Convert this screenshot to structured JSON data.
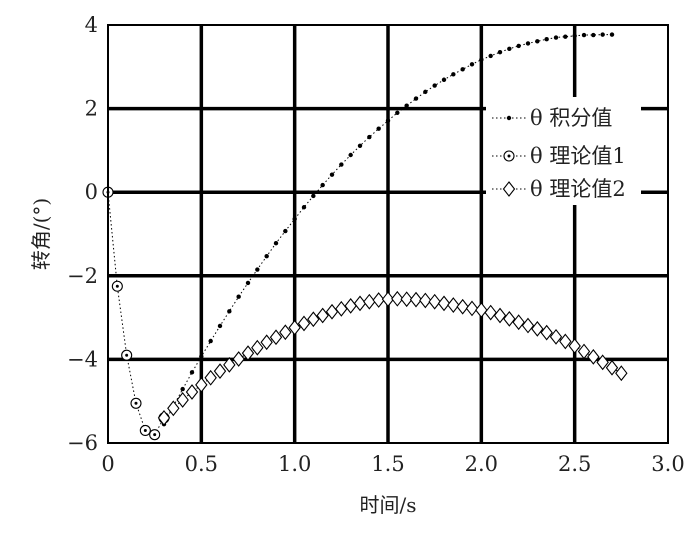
{
  "chart_data": {
    "type": "scatter",
    "title": "",
    "xlabel": "时间/s",
    "ylabel": "转角/(°)",
    "xlim": [
      0,
      3.0
    ],
    "ylim": [
      -6,
      4
    ],
    "grid": true,
    "legend_position": "top-right",
    "xticks": [
      "0",
      "0.5",
      "1.0",
      "1.5",
      "2.0",
      "2.5",
      "3.0"
    ],
    "yticks": [
      "4",
      "2",
      "0",
      "−2",
      "−4",
      "−6"
    ],
    "series": [
      {
        "name": "θ 积分值",
        "marker": "dot",
        "x": [
          0.3,
          0.35,
          0.4,
          0.45,
          0.5,
          0.55,
          0.6,
          0.65,
          0.7,
          0.75,
          0.8,
          0.85,
          0.9,
          0.95,
          1.0,
          1.05,
          1.1,
          1.15,
          1.2,
          1.25,
          1.3,
          1.35,
          1.4,
          1.45,
          1.5,
          1.55,
          1.6,
          1.65,
          1.7,
          1.75,
          1.8,
          1.85,
          1.9,
          1.95,
          2.0,
          2.05,
          2.1,
          2.15,
          2.2,
          2.25,
          2.3,
          2.35,
          2.4,
          2.45,
          2.5,
          2.55,
          2.6,
          2.65,
          2.7
        ],
        "y": [
          -5.55,
          -5.12,
          -4.71,
          -4.31,
          -3.93,
          -3.56,
          -3.2,
          -2.85,
          -2.5,
          -2.17,
          -1.85,
          -1.53,
          -1.22,
          -0.93,
          -0.64,
          -0.36,
          -0.09,
          0.17,
          0.42,
          0.66,
          0.89,
          1.11,
          1.32,
          1.52,
          1.71,
          1.9,
          2.07,
          2.24,
          2.4,
          2.55,
          2.69,
          2.82,
          2.94,
          3.06,
          3.17,
          3.26,
          3.35,
          3.43,
          3.5,
          3.56,
          3.61,
          3.66,
          3.7,
          3.72,
          3.74,
          3.76,
          3.76,
          3.77,
          3.77
        ]
      },
      {
        "name": "θ 理论值1",
        "marker": "circle",
        "x": [
          0.0,
          0.05,
          0.1,
          0.15,
          0.2,
          0.25,
          0.3
        ],
        "y": [
          0.0,
          -2.25,
          -3.9,
          -5.05,
          -5.7,
          -5.8,
          -5.4
        ]
      },
      {
        "name": "θ 理论值2",
        "marker": "diamond",
        "x": [
          0.3,
          0.35,
          0.4,
          0.45,
          0.5,
          0.55,
          0.6,
          0.65,
          0.7,
          0.75,
          0.8,
          0.85,
          0.9,
          0.95,
          1.0,
          1.05,
          1.1,
          1.15,
          1.2,
          1.25,
          1.3,
          1.35,
          1.4,
          1.45,
          1.5,
          1.55,
          1.6,
          1.65,
          1.7,
          1.75,
          1.8,
          1.85,
          1.9,
          1.95,
          2.0,
          2.05,
          2.1,
          2.15,
          2.2,
          2.25,
          2.3,
          2.35,
          2.4,
          2.45,
          2.5,
          2.55,
          2.6,
          2.65,
          2.7,
          2.75
        ],
        "y": [
          -5.4,
          -5.17,
          -4.97,
          -4.78,
          -4.61,
          -4.44,
          -4.28,
          -4.13,
          -3.99,
          -3.85,
          -3.72,
          -3.59,
          -3.47,
          -3.35,
          -3.24,
          -3.14,
          -3.04,
          -2.95,
          -2.86,
          -2.79,
          -2.72,
          -2.66,
          -2.62,
          -2.58,
          -2.56,
          -2.55,
          -2.56,
          -2.57,
          -2.59,
          -2.62,
          -2.66,
          -2.7,
          -2.74,
          -2.78,
          -2.82,
          -2.88,
          -2.95,
          -3.03,
          -3.11,
          -3.19,
          -3.27,
          -3.36,
          -3.46,
          -3.57,
          -3.68,
          -3.81,
          -3.94,
          -4.07,
          -4.2,
          -4.33
        ]
      }
    ]
  }
}
